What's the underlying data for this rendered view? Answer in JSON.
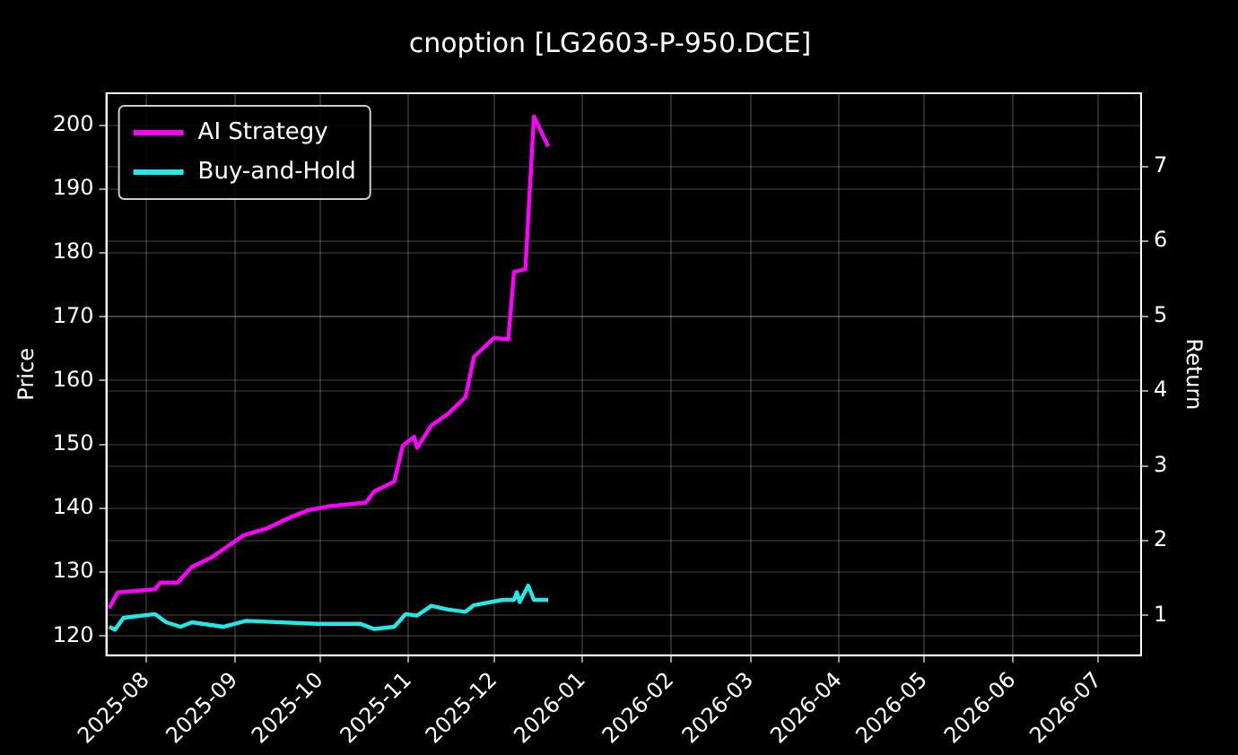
{
  "chart_data": {
    "type": "line",
    "title": "cnoption [LG2603-P-950.DCE]",
    "ylabel": "Price",
    "y2label": "Return",
    "xlim": [
      "2025-07-18",
      "2026-07-16"
    ],
    "xticks": [
      {
        "value": "2025-08-01",
        "label": "2025-08"
      },
      {
        "value": "2025-09-01",
        "label": "2025-09"
      },
      {
        "value": "2025-10-01",
        "label": "2025-10"
      },
      {
        "value": "2025-11-01",
        "label": "2025-11"
      },
      {
        "value": "2025-12-01",
        "label": "2025-12"
      },
      {
        "value": "2026-01-01",
        "label": "2026-01"
      },
      {
        "value": "2026-02-01",
        "label": "2026-02"
      },
      {
        "value": "2026-03-01",
        "label": "2026-03"
      },
      {
        "value": "2026-04-01",
        "label": "2026-04"
      },
      {
        "value": "2026-05-01",
        "label": "2026-05"
      },
      {
        "value": "2026-06-01",
        "label": "2026-06"
      },
      {
        "value": "2026-07-01",
        "label": "2026-07"
      }
    ],
    "ylim": [
      117,
      205
    ],
    "yticks": [
      120,
      130,
      140,
      150,
      160,
      170,
      180,
      190,
      200
    ],
    "y2lim": [
      0.47,
      7.98
    ],
    "y2ticks": [
      1,
      2,
      3,
      4,
      5,
      6,
      7
    ],
    "grid": true,
    "legend": "top left",
    "marker": "none",
    "line_style": "solid",
    "series": [
      {
        "name": "AI Strategy",
        "color": "#ff00ff",
        "axis": "y2",
        "x": [
          "2025-07-19",
          "2025-07-22",
          "2025-08-04",
          "2025-08-06",
          "2025-08-12",
          "2025-08-17",
          "2025-08-24",
          "2025-08-29",
          "2025-09-04",
          "2025-09-12",
          "2025-09-21",
          "2025-09-27",
          "2025-10-04",
          "2025-10-17",
          "2025-10-20",
          "2025-10-27",
          "2025-10-30",
          "2025-11-03",
          "2025-11-04",
          "2025-11-09",
          "2025-11-15",
          "2025-11-21",
          "2025-11-24",
          "2025-12-01",
          "2025-12-06",
          "2025-12-08",
          "2025-12-12",
          "2025-12-15",
          "2025-12-20"
        ],
        "values": [
          1.1,
          1.31,
          1.35,
          1.44,
          1.44,
          1.65,
          1.78,
          1.91,
          2.07,
          2.16,
          2.32,
          2.41,
          2.46,
          2.51,
          2.66,
          2.79,
          3.27,
          3.39,
          3.24,
          3.54,
          3.7,
          3.92,
          4.46,
          4.71,
          4.69,
          5.59,
          5.63,
          7.67,
          7.27
        ]
      },
      {
        "name": "Buy-and-Hold",
        "color": "#22e8e8",
        "axis": "y2",
        "x": [
          "2025-07-19",
          "2025-07-21",
          "2025-07-24",
          "2025-08-04",
          "2025-08-08",
          "2025-08-13",
          "2025-08-17",
          "2025-08-28",
          "2025-09-05",
          "2025-09-30",
          "2025-10-15",
          "2025-10-20",
          "2025-10-27",
          "2025-10-31",
          "2025-11-04",
          "2025-11-09",
          "2025-11-15",
          "2025-11-21",
          "2025-11-24",
          "2025-12-04",
          "2025-12-08",
          "2025-12-09",
          "2025-12-10",
          "2025-12-13",
          "2025-12-15",
          "2025-12-20"
        ],
        "values": [
          0.85,
          0.81,
          0.97,
          1.02,
          0.91,
          0.85,
          0.91,
          0.85,
          0.93,
          0.89,
          0.89,
          0.82,
          0.85,
          1.02,
          1.0,
          1.13,
          1.08,
          1.05,
          1.14,
          1.21,
          1.21,
          1.31,
          1.18,
          1.4,
          1.21,
          1.21
        ]
      }
    ]
  }
}
